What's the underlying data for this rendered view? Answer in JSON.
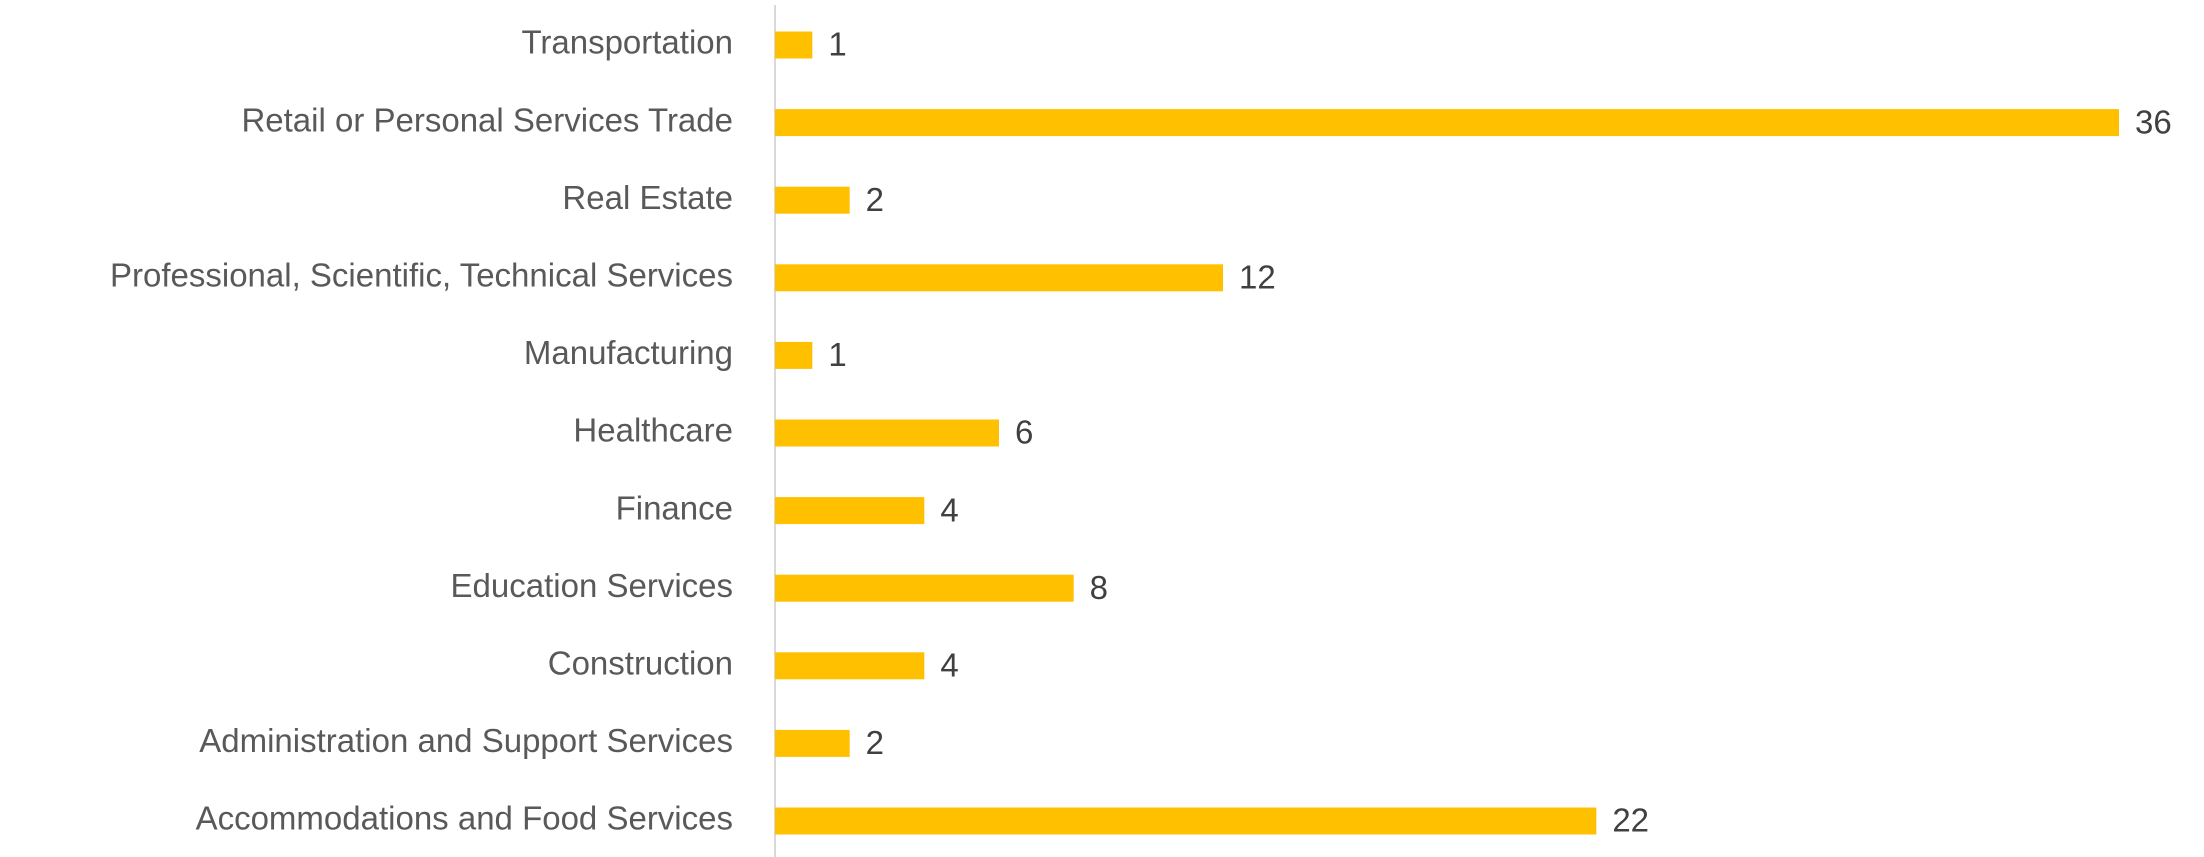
{
  "chart_data": {
    "type": "barh",
    "categories": [
      "Transportation",
      "Retail or Personal Services Trade",
      "Real Estate",
      "Professional, Scientific, Technical Services",
      "Manufacturing",
      "Healthcare",
      "Finance",
      "Education Services",
      "Construction",
      "Administration and Support Services",
      "Accommodations and Food Services"
    ],
    "values": [
      1,
      36,
      2,
      12,
      1,
      6,
      4,
      8,
      4,
      2,
      22
    ],
    "color": "#ffc000",
    "xlim": [
      0,
      36
    ]
  }
}
